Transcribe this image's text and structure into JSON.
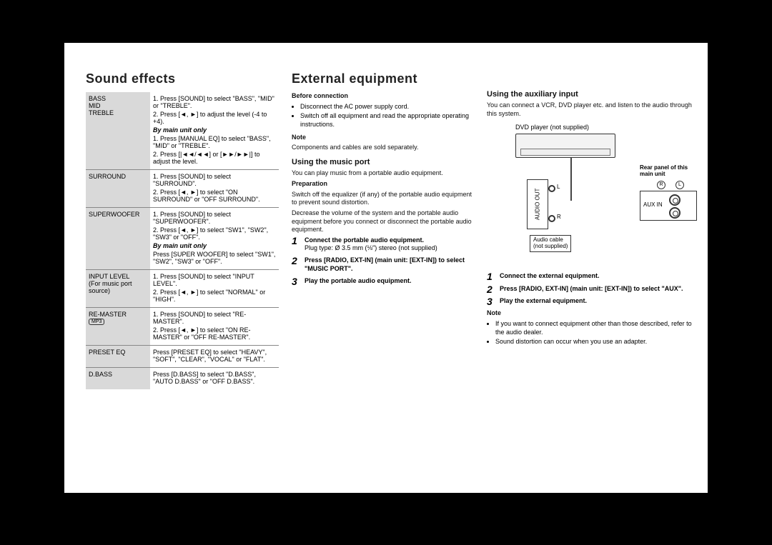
{
  "left": {
    "title": "Sound effects",
    "rows": [
      {
        "label": "BASS\nMID\nTREBLE",
        "steps": [
          "1. Press [SOUND] to select \"BASS\", \"MID\" or \"TREBLE\".",
          "2. Press [◄, ►] to adjust the level (-4 to +4)."
        ],
        "mainunit_label": "By main unit only",
        "mainunit_steps": [
          "1. Press [MANUAL EQ] to select \"BASS\", \"MID\" or \"TREBLE\".",
          "2. Press [|◄◄/◄◄] or [►►/►►|] to adjust the level."
        ]
      },
      {
        "label": "SURROUND",
        "steps": [
          "1. Press [SOUND] to select \"SURROUND\".",
          "2. Press [◄, ►] to select \"ON SURROUND\" or \"OFF SURROUND\"."
        ]
      },
      {
        "label": "SUPERWOOFER",
        "steps": [
          "1. Press [SOUND] to select \"SUPERWOOFER\".",
          "2. Press [◄, ►] to select \"SW1\", \"SW2\", \"SW3\" or \"OFF\"."
        ],
        "mainunit_label": "By main unit only",
        "mainunit_steps": [
          "Press [SUPER WOOFER] to select \"SW1\", \"SW2\", \"SW3\" or \"OFF\"."
        ]
      },
      {
        "label": "INPUT LEVEL\n(For music port source)",
        "steps": [
          "1. Press [SOUND] to select \"INPUT LEVEL\".",
          "2. Press [◄, ►] to select \"NORMAL\" or \"HIGH\"."
        ]
      },
      {
        "label": "RE-MASTER",
        "badge": "MP3",
        "steps": [
          "1. Press [SOUND] to select \"RE-MASTER\".",
          "2. Press [◄, ►] to select \"ON RE-MASTER\" or \"OFF RE-MASTER\"."
        ]
      },
      {
        "label": "PRESET EQ",
        "steps": [
          "Press [PRESET EQ] to select \"HEAVY\", \"SOFT\", \"CLEAR\", \"VOCAL\" or \"FLAT\"."
        ]
      },
      {
        "label": "D.BASS",
        "steps": [
          "Press [D.BASS] to select \"D.BASS\", \"AUTO D.BASS\" or \"OFF D.BASS\"."
        ]
      }
    ]
  },
  "mid": {
    "title": "External equipment",
    "before_h": "Before connection",
    "before_items": [
      "Disconnect the AC power supply cord.",
      "Switch off all equipment and read the appropriate operating instructions."
    ],
    "note_h": "Note",
    "note_text": "Components and cables are sold separately.",
    "music_h": "Using the music port",
    "music_intro": "You can play music from a portable audio equipment.",
    "prep_h": "Preparation",
    "prep_text1": "Switch off the equalizer (if any) of the portable audio equipment to prevent sound distortion.",
    "prep_text2": "Decrease the volume of the system and the portable audio equipment before you connect or disconnect the portable audio equipment.",
    "steps": [
      {
        "title": "Connect the portable audio equipment.",
        "sub": "Plug type: Ø 3.5 mm (⅛″) stereo (not supplied)"
      },
      {
        "title": "Press [RADIO, EXT-IN] (main unit: [EXT-IN]) to select \"MUSIC PORT\"."
      },
      {
        "title": "Play the portable audio equipment."
      }
    ]
  },
  "right": {
    "aux_h": "Using the auxiliary input",
    "aux_intro": "You can connect a VCR, DVD player etc. and listen to the audio through this system.",
    "diagram": {
      "dvd_label": "DVD player (not supplied)",
      "audio_out": "AUDIO OUT",
      "l": "L",
      "r": "R",
      "rear_label": "Rear panel of this main unit",
      "rl_r": "R",
      "rl_l": "L",
      "auxin": "AUX IN",
      "cable_note": "Audio cable\n(not supplied)"
    },
    "steps": [
      {
        "title": "Connect the external equipment."
      },
      {
        "title": "Press [RADIO, EXT-IN] (main unit: [EXT-IN]) to select \"AUX\"."
      },
      {
        "title": "Play the external equipment."
      }
    ],
    "note_h": "Note",
    "note_items": [
      "If you want to connect equipment other than those described, refer to the audio dealer.",
      "Sound distortion can occur when you use an adapter."
    ]
  }
}
